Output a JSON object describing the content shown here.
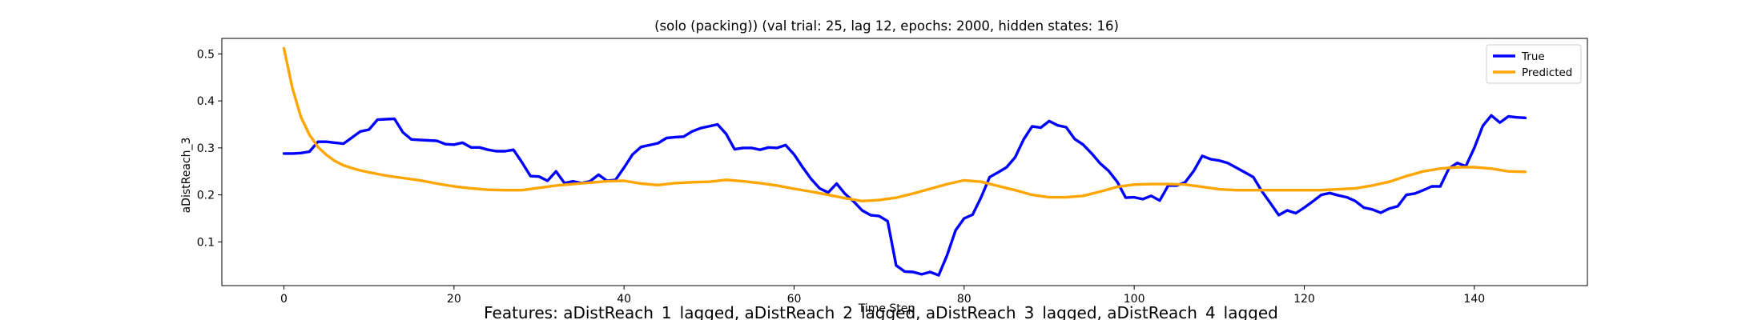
{
  "chart_data": {
    "type": "line",
    "title": "(solo (packing)) (val trial: 25, lag 12, epochs: 2000, hidden states: 16)",
    "xlabel": "Time Step",
    "ylabel": "aDistReach_3",
    "caption": "Features: aDistReach_1_lagged, aDistReach_2_lagged, aDistReach_3_lagged, aDistReach_4_lagged",
    "xlim": [
      -7.3,
      153.3
    ],
    "ylim": [
      0.007,
      0.533
    ],
    "xticks": [
      0,
      20,
      40,
      60,
      80,
      100,
      120,
      140
    ],
    "yticks": [
      0.1,
      0.2,
      0.3,
      0.4,
      0.5
    ],
    "grid": false,
    "legend_position": "top-right",
    "series": [
      {
        "name": "True",
        "color": "#0000ff",
        "x": [
          0,
          1,
          2,
          3,
          4,
          5,
          6,
          7,
          8,
          9,
          10,
          11,
          12,
          13,
          14,
          15,
          16,
          17,
          18,
          19,
          20,
          21,
          22,
          23,
          24,
          25,
          26,
          27,
          28,
          29,
          30,
          31,
          32,
          33,
          34,
          35,
          36,
          37,
          38,
          39,
          40,
          41,
          42,
          43,
          44,
          45,
          46,
          47,
          48,
          49,
          50,
          51,
          52,
          53,
          54,
          55,
          56,
          57,
          58,
          59,
          60,
          61,
          62,
          63,
          64,
          65,
          66,
          67,
          68,
          69,
          70,
          71,
          72,
          73,
          74,
          75,
          76,
          77,
          78,
          79,
          80,
          81,
          82,
          83,
          84,
          85,
          86,
          87,
          88,
          89,
          90,
          91,
          92,
          93,
          94,
          95,
          96,
          97,
          98,
          99,
          100,
          101,
          102,
          103,
          104,
          105,
          106,
          107,
          108,
          109,
          110,
          111,
          112,
          113,
          114,
          115,
          116,
          117,
          118,
          119,
          120,
          121,
          122,
          123,
          124,
          125,
          126,
          127,
          128,
          129,
          130,
          131,
          132,
          133,
          134,
          135,
          136,
          137,
          138,
          139,
          140,
          141,
          142,
          143,
          144,
          145,
          146
        ],
        "values": [
          0.288,
          0.288,
          0.289,
          0.292,
          0.313,
          0.313,
          0.311,
          0.309,
          0.322,
          0.335,
          0.339,
          0.36,
          0.361,
          0.362,
          0.333,
          0.318,
          0.317,
          0.316,
          0.315,
          0.308,
          0.307,
          0.311,
          0.301,
          0.301,
          0.296,
          0.293,
          0.293,
          0.296,
          0.269,
          0.24,
          0.239,
          0.23,
          0.25,
          0.225,
          0.229,
          0.225,
          0.229,
          0.243,
          0.23,
          0.232,
          0.258,
          0.286,
          0.302,
          0.306,
          0.31,
          0.321,
          0.323,
          0.324,
          0.335,
          0.342,
          0.346,
          0.35,
          0.33,
          0.297,
          0.3,
          0.3,
          0.296,
          0.301,
          0.3,
          0.306,
          0.286,
          0.259,
          0.234,
          0.214,
          0.205,
          0.224,
          0.202,
          0.186,
          0.167,
          0.157,
          0.155,
          0.144,
          0.05,
          0.037,
          0.036,
          0.031,
          0.036,
          0.029,
          0.072,
          0.125,
          0.15,
          0.158,
          0.195,
          0.238,
          0.248,
          0.259,
          0.28,
          0.318,
          0.346,
          0.343,
          0.357,
          0.348,
          0.344,
          0.319,
          0.307,
          0.288,
          0.267,
          0.251,
          0.228,
          0.194,
          0.195,
          0.191,
          0.198,
          0.188,
          0.22,
          0.22,
          0.227,
          0.251,
          0.283,
          0.276,
          0.273,
          0.268,
          0.258,
          0.248,
          0.238,
          0.208,
          0.183,
          0.157,
          0.167,
          0.161,
          0.173,
          0.186,
          0.2,
          0.204,
          0.199,
          0.195,
          0.187,
          0.173,
          0.169,
          0.162,
          0.171,
          0.176,
          0.2,
          0.203,
          0.21,
          0.218,
          0.218,
          0.256,
          0.268,
          0.261,
          0.3,
          0.347,
          0.369,
          0.354,
          0.367,
          0.365,
          0.364
        ]
      },
      {
        "name": "Predicted",
        "color": "#ffa500",
        "x": [
          0,
          1,
          2,
          3,
          4,
          5,
          6,
          7,
          8,
          9,
          10,
          12,
          14,
          16,
          18,
          20,
          22,
          24,
          26,
          28,
          30,
          32,
          34,
          36,
          38,
          40,
          42,
          44,
          46,
          48,
          50,
          52,
          54,
          56,
          58,
          60,
          62,
          64,
          66,
          68,
          70,
          72,
          74,
          76,
          78,
          80,
          82,
          84,
          86,
          88,
          90,
          92,
          94,
          96,
          98,
          100,
          102,
          104,
          106,
          108,
          110,
          112,
          114,
          116,
          118,
          120,
          122,
          124,
          126,
          128,
          130,
          132,
          134,
          136,
          138,
          140,
          142,
          144,
          146
        ],
        "values": [
          0.512,
          0.427,
          0.366,
          0.328,
          0.302,
          0.285,
          0.272,
          0.263,
          0.257,
          0.252,
          0.248,
          0.241,
          0.236,
          0.231,
          0.224,
          0.218,
          0.214,
          0.211,
          0.21,
          0.21,
          0.215,
          0.22,
          0.223,
          0.226,
          0.229,
          0.23,
          0.224,
          0.221,
          0.225,
          0.227,
          0.228,
          0.232,
          0.229,
          0.225,
          0.22,
          0.213,
          0.207,
          0.2,
          0.193,
          0.187,
          0.189,
          0.194,
          0.203,
          0.213,
          0.223,
          0.231,
          0.228,
          0.219,
          0.21,
          0.2,
          0.195,
          0.195,
          0.198,
          0.207,
          0.217,
          0.222,
          0.223,
          0.223,
          0.222,
          0.217,
          0.212,
          0.21,
          0.21,
          0.21,
          0.21,
          0.21,
          0.21,
          0.212,
          0.214,
          0.22,
          0.228,
          0.24,
          0.25,
          0.256,
          0.259,
          0.259,
          0.256,
          0.25,
          0.249
        ]
      }
    ]
  }
}
